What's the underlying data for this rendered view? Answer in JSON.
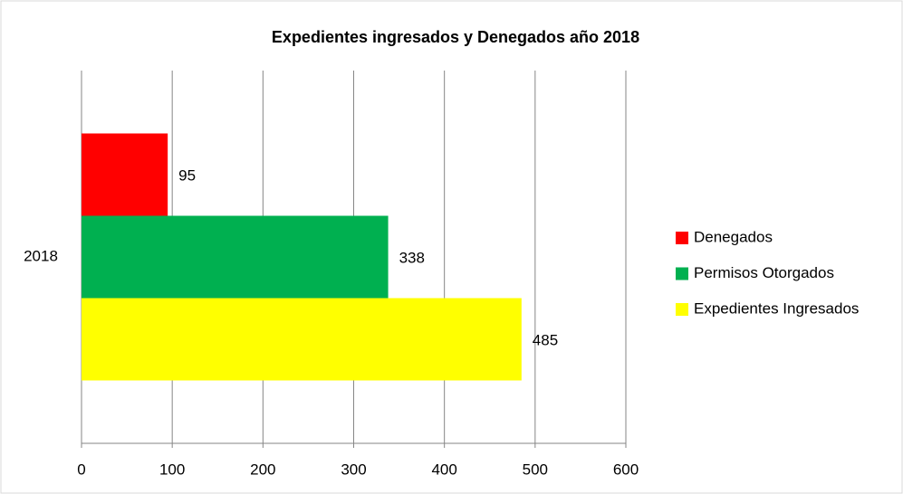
{
  "chart_data": {
    "type": "bar",
    "orientation": "horizontal",
    "title": "Expedientes ingresados y Denegados año 2018",
    "categories": [
      "2018"
    ],
    "series": [
      {
        "name": "Denegados",
        "color": "#ff0000",
        "values": [
          95
        ]
      },
      {
        "name": "Permisos Otorgados",
        "color": "#00b050",
        "values": [
          338
        ]
      },
      {
        "name": "Expedientes Ingresados",
        "color": "#ffff00",
        "values": [
          485
        ]
      }
    ],
    "xlim": [
      0,
      600
    ],
    "xticks": [
      0,
      100,
      200,
      300,
      400,
      500,
      600
    ],
    "grid": true,
    "legend": "right"
  }
}
